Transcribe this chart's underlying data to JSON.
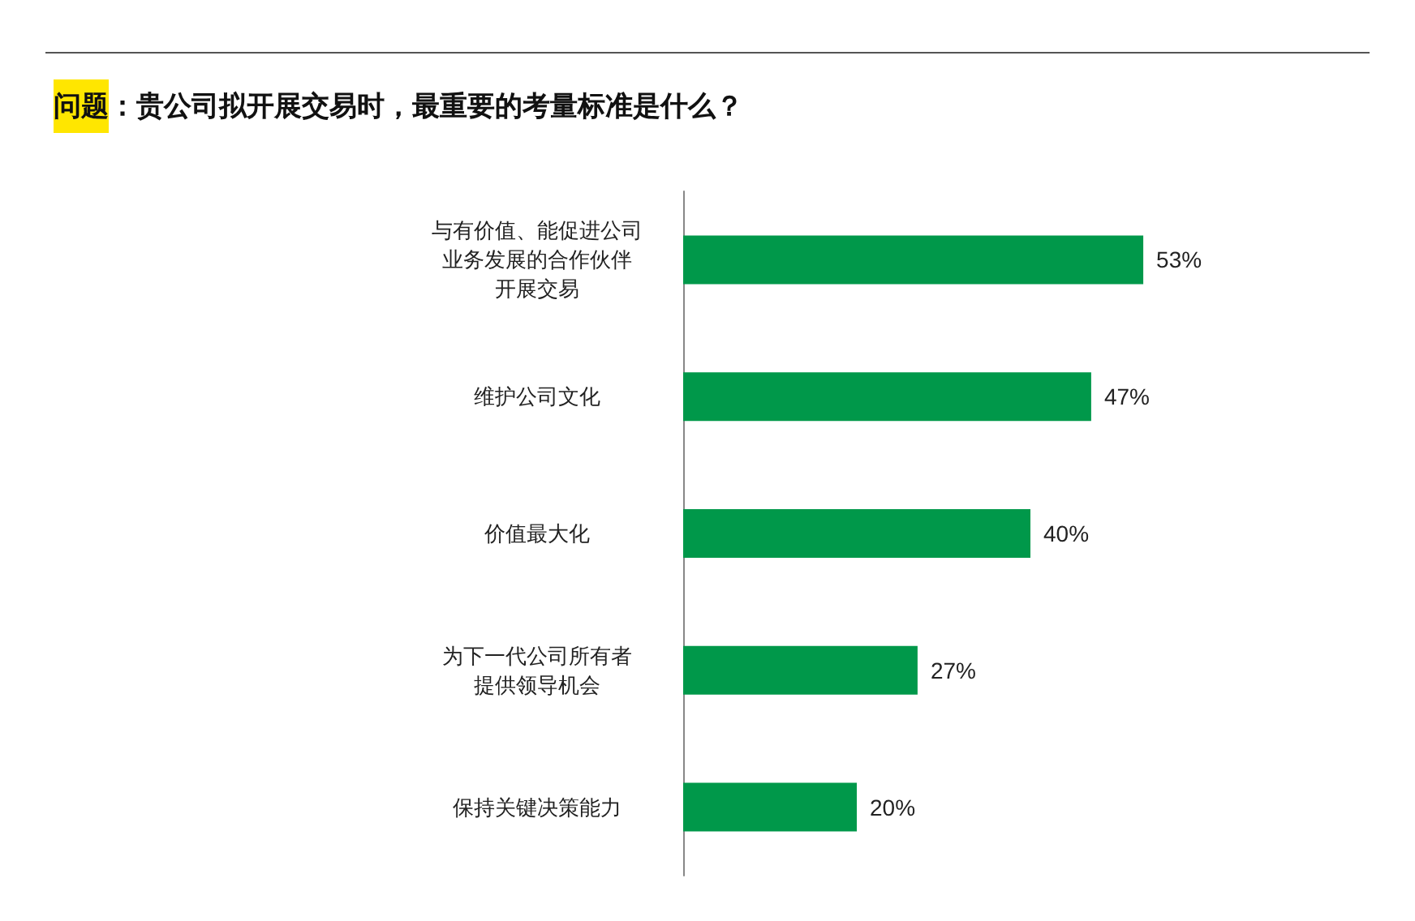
{
  "chart_data": {
    "type": "bar",
    "orientation": "horizontal",
    "title": "问题：贵公司拟开展交易时，最重要的考量标准是什么？",
    "categories": [
      "与有价值、能促进公司业务发展的合作伙伴开展交易",
      "维护公司文化",
      "价值最大化",
      "为下一代公司所有者提供领导机会",
      "保持关键决策能力"
    ],
    "values": [
      53,
      47,
      40,
      27,
      20
    ],
    "value_labels": [
      "53%",
      "47%",
      "40%",
      "27%",
      "20%"
    ],
    "color": "#00984a"
  }
}
